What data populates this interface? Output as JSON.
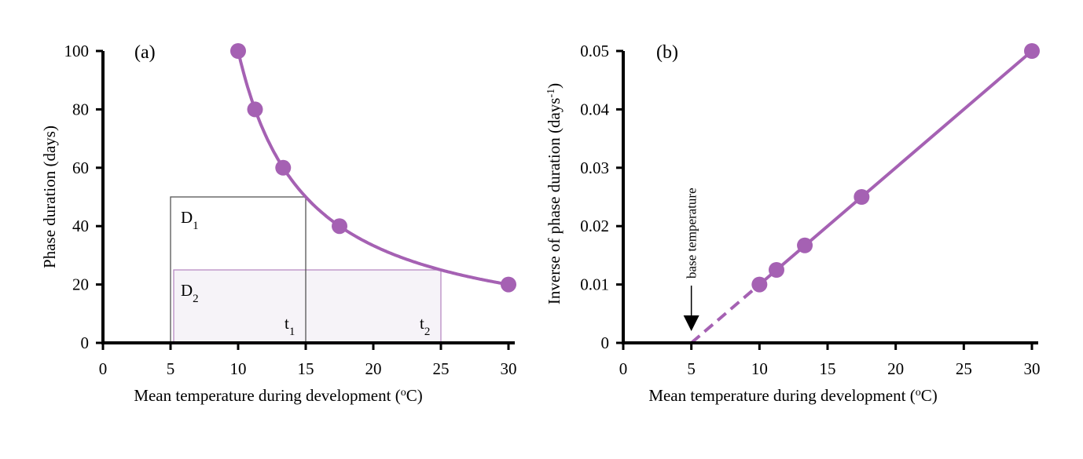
{
  "colors": {
    "series": "#a561b3",
    "rect_fill": "#f6f3f8",
    "axis": "#000000",
    "rect1_stroke": "#555555",
    "rect2_stroke": "#b88bc2"
  },
  "chart_data": [
    {
      "type": "line",
      "panel_label": "(a)",
      "xlabel": "Mean temperature during development (",
      "xlabel_sup": "o",
      "xlabel_end": "C)",
      "ylabel": "Phase duration (days)",
      "xlim": [
        0,
        30
      ],
      "ylim": [
        0,
        100
      ],
      "xticks": [
        0,
        5,
        10,
        15,
        20,
        25,
        30
      ],
      "yticks": [
        0,
        20,
        40,
        60,
        80,
        100
      ],
      "grid": false,
      "points": {
        "x": [
          10,
          11.25,
          13.33,
          17.5,
          30
        ],
        "y": [
          100,
          80,
          60,
          40,
          20
        ]
      },
      "curve": "500 / (T - 5)",
      "rectangles": [
        {
          "label": "D",
          "sub": "1",
          "x_end_label": "t",
          "x_end_sub": "1",
          "x": [
            5,
            15
          ],
          "y": [
            0,
            50
          ]
        },
        {
          "label": "D",
          "sub": "2",
          "x_end_label": "t",
          "x_end_sub": "2",
          "x": [
            5,
            25
          ],
          "y": [
            0,
            25
          ]
        }
      ]
    },
    {
      "type": "line",
      "panel_label": "(b)",
      "xlabel": "Mean temperature during development (",
      "xlabel_sup": "o",
      "xlabel_end": "C)",
      "ylabel": "Inverse of phase duration (days",
      "ylabel_sup": "-1",
      "ylabel_end": ")",
      "xlim": [
        0,
        30
      ],
      "ylim": [
        0,
        0.05
      ],
      "xticks": [
        0,
        5,
        10,
        15,
        20,
        25,
        30
      ],
      "yticks": [
        "0",
        "0.01",
        "0.02",
        "0.03",
        "0.04",
        "0.05"
      ],
      "grid": false,
      "points": {
        "x": [
          10,
          11.25,
          13.33,
          17.5,
          30
        ],
        "y": [
          0.01,
          0.0125,
          0.0167,
          0.025,
          0.05
        ]
      },
      "line_solid": {
        "x": [
          10,
          30
        ]
      },
      "line_dashed": {
        "x": [
          5,
          10
        ]
      },
      "annotation": {
        "text": "base temperature",
        "x": 5
      }
    }
  ]
}
